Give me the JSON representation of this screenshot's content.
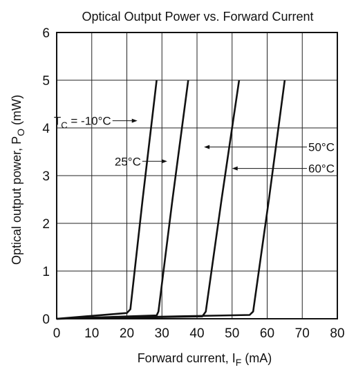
{
  "chart_data": {
    "type": "line",
    "title": "Optical Output Power vs. Forward Current",
    "xlabel": {
      "main": "Forward current,  I",
      "sub": "F",
      "unit": "  (mA)"
    },
    "ylabel": {
      "main": "Optical output power,  P",
      "sub": "O",
      "unit": "  (mW)"
    },
    "xlim": [
      0,
      80
    ],
    "ylim": [
      0,
      6
    ],
    "xticks": [
      0,
      10,
      20,
      30,
      40,
      50,
      60,
      70,
      80
    ],
    "yticks": [
      0,
      1,
      2,
      3,
      4,
      5,
      6
    ],
    "grid": true,
    "series": [
      {
        "name": "-10°C",
        "points": [
          [
            0,
            0
          ],
          [
            20,
            0.12
          ],
          [
            21,
            0.2
          ],
          [
            24.5,
            2.5
          ],
          [
            28.5,
            5.0
          ]
        ]
      },
      {
        "name": "25°C",
        "points": [
          [
            0,
            0
          ],
          [
            28.5,
            0.07
          ],
          [
            29,
            0.15
          ],
          [
            33,
            2.5
          ],
          [
            37.5,
            5.0
          ]
        ]
      },
      {
        "name": "50°C",
        "points": [
          [
            0,
            0
          ],
          [
            41.5,
            0.05
          ],
          [
            42.5,
            0.15
          ],
          [
            47,
            2.5
          ],
          [
            52,
            5.0
          ]
        ]
      },
      {
        "name": "60°C",
        "points": [
          [
            0,
            0
          ],
          [
            55,
            0.08
          ],
          [
            56,
            0.15
          ],
          [
            60.5,
            2.5
          ],
          [
            65,
            5.0
          ]
        ]
      }
    ],
    "annotations": [
      {
        "series": 0,
        "text": "= -10°C",
        "prefix": "T",
        "prefix_sub": "C",
        "side": "left",
        "point": [
          23,
          4.15
        ]
      },
      {
        "series": 1,
        "text": "25°C",
        "side": "left",
        "point": [
          31.5,
          3.3
        ]
      },
      {
        "series": 2,
        "text": "50°C",
        "side": "right",
        "point": [
          42.0,
          3.6
        ]
      },
      {
        "series": 3,
        "text": "60°C",
        "side": "right",
        "point": [
          50.0,
          3.15
        ]
      }
    ]
  }
}
